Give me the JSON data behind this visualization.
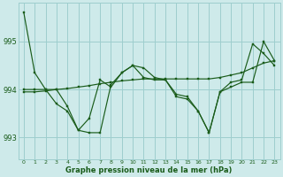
{
  "title": "Graphe pression niveau de la mer (hPa)",
  "background_color": "#ceeaea",
  "grid_color": "#9ecece",
  "line_color": "#1a5c1a",
  "marker_color": "#1a5c1a",
  "xlim": [
    -0.5,
    23.5
  ],
  "ylim": [
    992.55,
    995.8
  ],
  "yticks": [
    993,
    994,
    995
  ],
  "xticks": [
    0,
    1,
    2,
    3,
    4,
    5,
    6,
    7,
    8,
    9,
    10,
    11,
    12,
    13,
    14,
    15,
    16,
    17,
    18,
    19,
    20,
    21,
    22,
    23
  ],
  "series": [
    [
      995.6,
      994.35,
      994.0,
      993.7,
      993.55,
      993.15,
      993.1,
      993.1,
      994.1,
      994.35,
      994.5,
      994.45,
      994.25,
      994.2,
      993.85,
      993.8,
      993.55,
      993.1,
      993.95,
      994.15,
      994.2,
      994.95,
      994.75,
      994.5
    ],
    [
      994.0,
      994.0,
      994.0,
      994.0,
      993.65,
      993.15,
      993.4,
      994.2,
      994.05,
      994.35,
      994.5,
      994.25,
      994.2,
      994.2,
      993.9,
      993.85,
      993.55,
      993.1,
      993.95,
      994.05,
      994.15,
      994.15,
      995.0,
      994.6
    ],
    [
      993.95,
      993.95,
      993.97,
      994.0,
      994.02,
      994.05,
      994.08,
      994.12,
      994.15,
      994.18,
      994.2,
      994.22,
      994.22,
      994.22,
      994.22,
      994.22,
      994.22,
      994.22,
      994.25,
      994.3,
      994.35,
      994.45,
      994.55,
      994.6
    ]
  ]
}
